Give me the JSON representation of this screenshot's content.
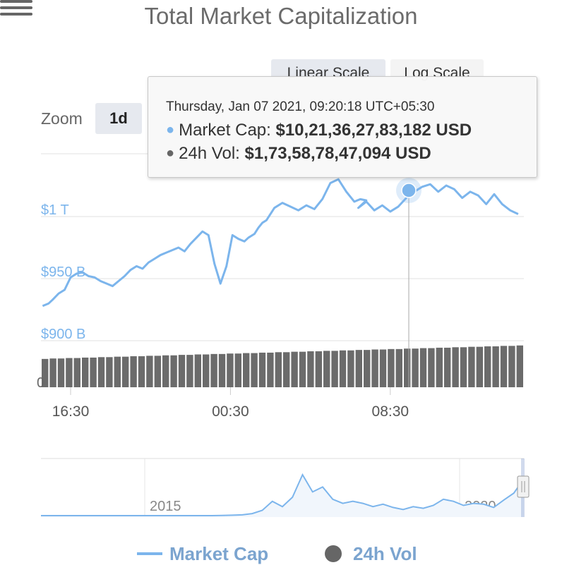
{
  "chart_data": {
    "type": "line",
    "title": "Total Market Capitalization",
    "scale_buttons": [
      "Linear Scale",
      "Log Scale"
    ],
    "zoom": {
      "label": "Zoom",
      "options": [
        "1d"
      ],
      "selected": "1d"
    },
    "yaxis": {
      "range": [
        900,
        1050
      ],
      "ticks": [
        {
          "value": 900,
          "label": "$900 B"
        },
        {
          "value": 950,
          "label": "$950 B"
        },
        {
          "value": 1000,
          "label": "$1 T"
        }
      ],
      "volume_tick": "0"
    },
    "xaxis": {
      "range": [
        -1.4,
        14.8
      ],
      "ticks": [
        {
          "value": 0,
          "label": "16:30"
        },
        {
          "value": 8,
          "label": "00:30"
        },
        {
          "value": 16,
          "label": "08:30"
        }
      ]
    },
    "series": [
      {
        "name": "Market Cap",
        "color": "#7cb5ec",
        "x": [
          -1.4,
          -1.1,
          -0.9,
          -0.6,
          -0.3,
          0.0,
          0.3,
          0.6,
          0.9,
          1.2,
          1.5,
          1.8,
          2.1,
          2.4,
          2.7,
          3.0,
          3.3,
          3.6,
          3.9,
          4.2,
          4.5,
          4.8,
          5.1,
          5.4,
          5.7,
          6.0,
          6.3,
          6.6,
          6.9,
          7.2,
          7.5,
          7.8,
          8.1,
          8.4,
          8.7,
          8.9,
          9.2,
          9.4,
          9.6,
          9.8,
          10.2,
          10.6,
          11.0,
          11.4,
          11.8,
          12.2,
          12.6,
          13.0,
          13.4,
          13.8,
          14.2,
          14.5,
          14.8
        ],
        "values": [
          928,
          930,
          933,
          938,
          941,
          951,
          954,
          955,
          952,
          951,
          948,
          946,
          944,
          948,
          952,
          957,
          960,
          958,
          963,
          966,
          969,
          971,
          973,
          975,
          972,
          978,
          983,
          988,
          985,
          962,
          946,
          960,
          985,
          982,
          980,
          983,
          986,
          991,
          995,
          997,
          1007,
          1011,
          1008,
          1005,
          1009,
          1006,
          1014,
          1027,
          1030,
          1020,
          1012,
          1014,
          1013
        ],
        "scatter_points": {
          "x": [
            14.4,
            14.8,
            15.2,
            15.6,
            16.0,
            16.4,
            16.8,
            17.2,
            17.6,
            18.0,
            18.4,
            18.8,
            19.2,
            19.6,
            20.0,
            20.4,
            20.8,
            21.2,
            21.6,
            22.0,
            22.4,
            22.8,
            23.2,
            23.6,
            24.0
          ],
          "values": [
            1007,
            1012,
            1005,
            1009,
            1004,
            1008,
            1015,
            1020,
            1024,
            1026,
            1020,
            1025,
            1022,
            1015,
            1020,
            1017,
            1010,
            1018,
            1010,
            1005,
            1002,
            1000,
            995,
            1002,
            1000
          ]
        }
      },
      {
        "name": "24h Vol",
        "color": "#666666",
        "values": [
          0.63,
          0.64,
          0.64,
          0.65,
          0.65,
          0.66,
          0.66,
          0.67,
          0.67,
          0.68,
          0.68,
          0.69,
          0.69,
          0.7,
          0.7,
          0.71,
          0.71,
          0.72,
          0.72,
          0.73,
          0.73,
          0.74,
          0.74,
          0.75,
          0.75,
          0.76,
          0.76,
          0.77,
          0.77,
          0.78,
          0.78,
          0.79,
          0.79,
          0.8,
          0.8,
          0.81,
          0.81,
          0.82,
          0.82,
          0.83,
          0.83,
          0.84,
          0.84,
          0.85,
          0.85,
          0.86,
          0.86,
          0.87,
          0.87,
          0.88,
          0.88,
          0.89,
          0.89,
          0.9,
          0.9,
          0.91,
          0.91,
          0.92,
          0.92,
          0.93
        ]
      }
    ],
    "tooltip": {
      "date": "Thursday, Jan 07 2021, 09:20:18 UTC+05:30",
      "market_cap_label": "Market Cap: ",
      "market_cap_value": "$10,21,36,27,83,182 USD",
      "vol_label": "24h Vol: ",
      "vol_value": "$1,73,58,78,47,094 USD"
    },
    "navigator": {
      "ticks": [
        "2015",
        "2020"
      ],
      "values": [
        0,
        0,
        0,
        0,
        0,
        0,
        0,
        0,
        0,
        0,
        0,
        0,
        0,
        0,
        0,
        0,
        0,
        0,
        0.5,
        1,
        2,
        5,
        13,
        35,
        22,
        45,
        100,
        58,
        70,
        40,
        30,
        35,
        30,
        22,
        28,
        20,
        15,
        22,
        18,
        25,
        40,
        35,
        25,
        30,
        28,
        20,
        38,
        55,
        90
      ]
    },
    "legend": [
      "Market Cap",
      "24h Vol"
    ]
  }
}
